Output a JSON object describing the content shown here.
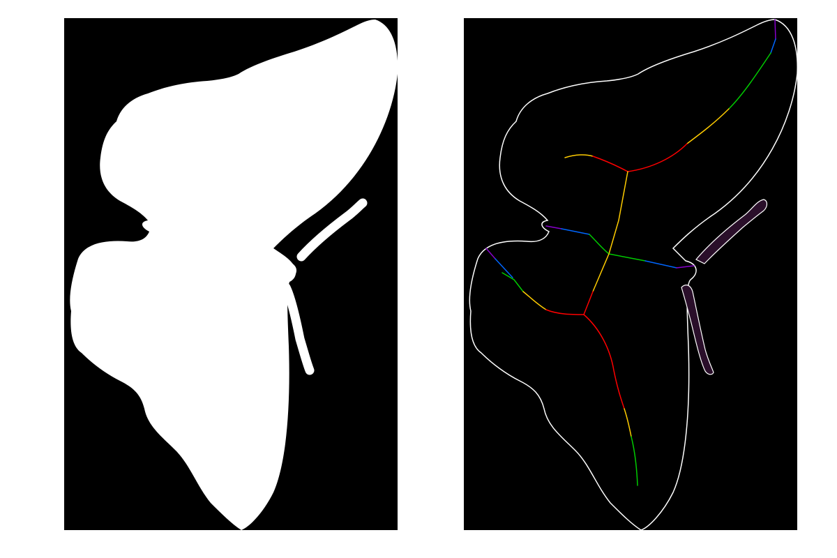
{
  "figure": {
    "background": "#ffffff",
    "panels": [
      {
        "id": "binary-mask",
        "description_color": "#ffffff",
        "background_color": "#000000"
      },
      {
        "id": "skeleton-overlay",
        "background_color": "#000000",
        "contour_color": "#ffffff",
        "skeleton_palette": [
          "#ff0000",
          "#ffcc00",
          "#00cc00",
          "#0066ff",
          "#8800cc"
        ]
      }
    ]
  }
}
